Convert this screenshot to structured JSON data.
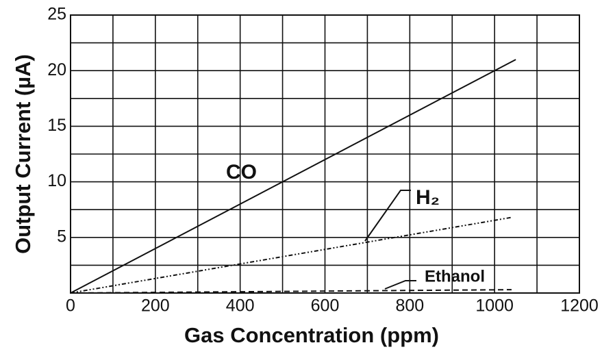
{
  "chart_data": {
    "type": "line",
    "xlabel": "Gas Concentration (ppm)",
    "ylabel": "Output Current (µA)",
    "xlim": [
      0,
      1200
    ],
    "xticks": [
      0,
      200,
      400,
      600,
      800,
      1000,
      1200
    ],
    "ylim": [
      0,
      25
    ],
    "yticks": [
      5,
      10,
      15,
      20,
      25
    ],
    "xminor": [
      100,
      300,
      500,
      700,
      900,
      1100
    ],
    "yminor": [
      2.5,
      7.5,
      12.5,
      17.5,
      22.5
    ],
    "grid": true,
    "series": [
      {
        "name": "CO",
        "color": "#111111",
        "style": "solid",
        "x": [
          0,
          1050
        ],
        "values": [
          0,
          21
        ]
      },
      {
        "name": "H₂",
        "color": "#111111",
        "style": "dashdotdot",
        "x": [
          0,
          1040
        ],
        "values": [
          0,
          6.8
        ]
      },
      {
        "name": "Ethanol",
        "color": "#111111",
        "style": "dashed",
        "x": [
          0,
          1040
        ],
        "values": [
          0,
          0.3
        ]
      }
    ]
  }
}
